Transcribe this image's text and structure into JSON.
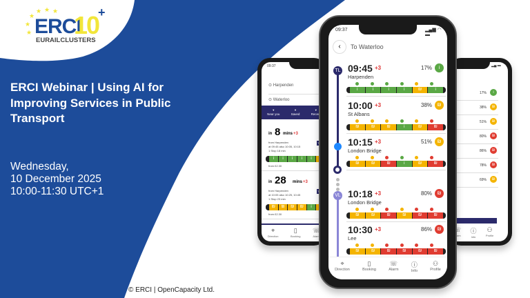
{
  "brand": {
    "logo_text": "ERCI",
    "logo_number": "10",
    "logo_plus": "+",
    "logo_sub": "EURAILCLUSTERS",
    "blue": "#1d4c9a",
    "yellow": "#f2e63a"
  },
  "title": "ERCI Webinar | Using AI for Improving Services in Public Transport",
  "date_lines": [
    "Wednesday,",
    "10 December 2025",
    "10:00-11:30 UTC+1"
  ],
  "copyright": "© ERCI | OpenCapacity Ltd.",
  "colors": {
    "green": "#5aa845",
    "yellow": "#f4b400",
    "red": "#e03c31",
    "navy": "#2b2a6b",
    "violet": "#8a86d6"
  },
  "main_phone": {
    "status_time": "09:37",
    "header": "To Waterloo",
    "lines": [
      {
        "code": "TL"
      },
      {
        "code": "VL"
      }
    ],
    "rows": [
      {
        "time": "09:45",
        "delay": "+3",
        "station": "Harpenden",
        "pct": "17%",
        "level": "green",
        "cars": [
          "green",
          "green",
          "green",
          "green",
          "yellow",
          "green"
        ]
      },
      {
        "time": "10:00",
        "delay": "+3",
        "station": "St Albans",
        "pct": "38%",
        "level": "yellow",
        "cars": [
          "yellow",
          "yellow",
          "yellow",
          "green",
          "yellow",
          "red"
        ]
      },
      {
        "time": "10:15",
        "delay": "+3",
        "station": "London Bridge",
        "pct": "51%",
        "level": "yellow",
        "cars": [
          "yellow",
          "yellow",
          "red",
          "green",
          "yellow",
          "red"
        ]
      },
      {
        "time": "10:18",
        "delay": "+3",
        "station": "London Bridge",
        "pct": "80%",
        "level": "red",
        "cars": [
          "yellow",
          "yellow",
          "red",
          "yellow",
          "red",
          "red"
        ]
      },
      {
        "time": "10:30",
        "delay": "+3",
        "station": "Lee",
        "pct": "86%",
        "level": "red",
        "cars": [
          "yellow",
          "yellow",
          "red",
          "red",
          "red",
          "red"
        ]
      }
    ],
    "nav": [
      {
        "label": "Direction",
        "icon": "pin-icon"
      },
      {
        "label": "Booking",
        "icon": "ticket-icon"
      },
      {
        "label": "Alarm",
        "icon": "alarm-icon"
      },
      {
        "label": "Info",
        "icon": "info-icon"
      },
      {
        "label": "Profile",
        "icon": "profile-icon"
      }
    ]
  },
  "left_phone": {
    "status_time": "09:37",
    "from": "Harpenden",
    "to": "Waterloo",
    "tabs": [
      "Near you",
      "Saved",
      "Recent"
    ],
    "cards": [
      {
        "in": "in",
        "mins": "8",
        "unit": "mins",
        "delay": "+3",
        "line": "TL",
        "detail1": "from Harpenden",
        "detail2": "at 09:45 also 10:05, 10:15",
        "detail3": "1 Stop 18 min",
        "price": "from £2.30",
        "cars": [
          "green",
          "green",
          "green",
          "green",
          "green",
          "yellow"
        ]
      },
      {
        "in": "in",
        "mins": "28",
        "unit": "mins",
        "delay": "+3",
        "line": "TL",
        "detail1": "from Harpenden",
        "detail2": "at 10:05 also 10:25, 10:45",
        "detail3": "1 Stop 23 min",
        "price": "from £2.30",
        "cars": [
          "yellow",
          "yellow",
          "yellow",
          "yellow",
          "green",
          "yellow"
        ]
      }
    ],
    "nav": [
      "Direction",
      "Booking",
      "Alarm"
    ]
  },
  "right_phone": {
    "rows": [
      {
        "pct": "17%",
        "level": "green"
      },
      {
        "pct": "38%",
        "level": "yellow"
      },
      {
        "pct": "51%",
        "level": "yellow"
      },
      {
        "pct": "80%",
        "level": "red"
      },
      {
        "pct": "86%",
        "level": "red"
      },
      {
        "pct": "78%",
        "level": "red"
      },
      {
        "pct": "69%",
        "level": "yellow"
      }
    ],
    "nav": [
      "Alarm",
      "Info",
      "Profile"
    ]
  }
}
